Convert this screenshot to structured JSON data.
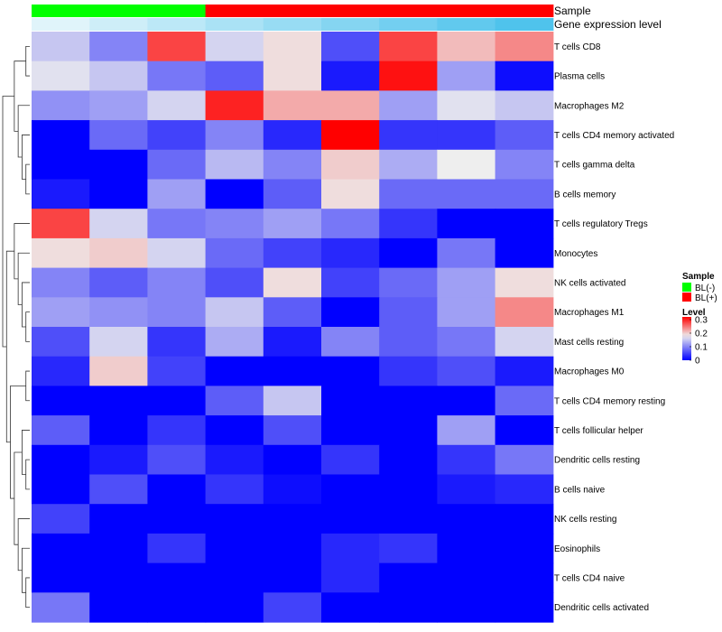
{
  "chart_data": {
    "type": "heatmap",
    "annotation_tracks": [
      {
        "name": "Sample",
        "values": [
          "BL(-)",
          "BL(-)",
          "BL(-)",
          "BL(+)",
          "BL(+)",
          "BL(+)",
          "BL(+)",
          "BL(+)",
          "BL(+)"
        ]
      },
      {
        "name": "Gene expression level",
        "values": [
          0.05,
          0.1,
          0.15,
          0.2,
          0.25,
          0.3,
          0.35,
          0.4,
          0.45
        ]
      }
    ],
    "rows": [
      "T cells CD8",
      "Plasma cells",
      "Macrophages M2",
      "T cells CD4 memory activated",
      "T cells gamma delta",
      "B cells memory",
      "T cells regulatory  Tregs",
      "Monocytes",
      "NK cells activated",
      "Macrophages M1",
      "Mast cells resting",
      "Macrophages M0",
      "T cells CD4 memory resting",
      "T cells follicular helper",
      "Dendritic cells resting",
      "B cells naive",
      "NK cells resting",
      "Eosinophils",
      "T cells CD4 naive",
      "Dendritic cells activated"
    ],
    "values": [
      [
        0.15,
        0.1,
        0.28,
        0.16,
        0.19,
        0.06,
        0.28,
        0.21,
        0.24
      ],
      [
        0.17,
        0.15,
        0.09,
        0.07,
        0.19,
        0.02,
        0.31,
        0.12,
        0.01
      ],
      [
        0.11,
        0.12,
        0.16,
        0.3,
        0.22,
        0.22,
        0.12,
        0.17,
        0.15
      ],
      [
        0.0,
        0.08,
        0.05,
        0.1,
        0.03,
        0.32,
        0.04,
        0.04,
        0.07
      ],
      [
        0.0,
        0.0,
        0.08,
        0.14,
        0.1,
        0.2,
        0.13,
        0.18,
        0.1
      ],
      [
        0.02,
        0.0,
        0.12,
        0.0,
        0.07,
        0.19,
        0.08,
        0.08,
        0.08
      ],
      [
        0.28,
        0.16,
        0.09,
        0.1,
        0.12,
        0.09,
        0.04,
        0.0,
        0.0
      ],
      [
        0.19,
        0.2,
        0.16,
        0.08,
        0.05,
        0.03,
        0.0,
        0.09,
        0.0
      ],
      [
        0.1,
        0.07,
        0.1,
        0.06,
        0.19,
        0.05,
        0.08,
        0.12,
        0.19
      ],
      [
        0.12,
        0.11,
        0.1,
        0.15,
        0.07,
        0.0,
        0.07,
        0.12,
        0.24
      ],
      [
        0.06,
        0.16,
        0.04,
        0.13,
        0.02,
        0.1,
        0.07,
        0.09,
        0.16
      ],
      [
        0.03,
        0.2,
        0.05,
        0.0,
        0.0,
        0.0,
        0.04,
        0.06,
        0.02
      ],
      [
        0.0,
        0.0,
        0.0,
        0.07,
        0.15,
        0.0,
        0.0,
        0.0,
        0.08
      ],
      [
        0.07,
        0.0,
        0.04,
        0.0,
        0.06,
        0.0,
        0.0,
        0.12,
        0.0
      ],
      [
        0.0,
        0.02,
        0.06,
        0.02,
        0.0,
        0.04,
        0.0,
        0.04,
        0.09
      ],
      [
        0.0,
        0.06,
        0.0,
        0.04,
        0.01,
        0.0,
        0.0,
        0.02,
        0.03
      ],
      [
        0.05,
        0.0,
        0.0,
        0.0,
        0.0,
        0.0,
        0.0,
        0.0,
        0.0
      ],
      [
        0.0,
        0.0,
        0.04,
        0.0,
        0.0,
        0.03,
        0.04,
        0.0,
        0.0
      ],
      [
        0.0,
        0.0,
        0.0,
        0.0,
        0.0,
        0.03,
        0.0,
        0.0,
        0.0
      ],
      [
        0.09,
        0.0,
        0.0,
        0.0,
        0.05,
        0.0,
        0.0,
        0.0,
        0.0
      ]
    ],
    "color_scale": {
      "low": "#0000FF",
      "mid": "#EEEEEE",
      "high": "#FF0000",
      "min": 0.0,
      "mid_value": 0.18,
      "max": 0.32
    },
    "legend": {
      "placement": "right",
      "sample": {
        "title": "Sample",
        "entries": [
          {
            "label": "BL(-)",
            "color": "#00FF00"
          },
          {
            "label": "BL(+)",
            "color": "#FF0000"
          }
        ]
      },
      "level": {
        "title": "Level",
        "ticks": [
          {
            "value": 0.3,
            "label": "0.3"
          },
          {
            "value": 0.2,
            "label": "0.2"
          },
          {
            "value": 0.1,
            "label": "0.1"
          },
          {
            "value": 0.0,
            "label": "0"
          }
        ]
      }
    },
    "colors": {
      "expression_low": "#E0F4FA",
      "expression_high": "#4FC3EC"
    },
    "row_dendrogram": true
  }
}
